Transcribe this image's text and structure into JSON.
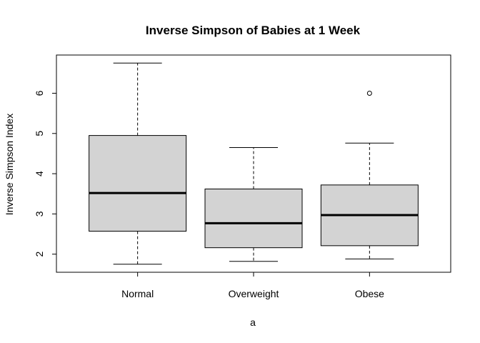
{
  "chart_data": {
    "type": "box",
    "title": "Inverse Simpson of Babies at 1 Week",
    "xlabel": "a",
    "ylabel": "Inverse Simpson Index",
    "categories": [
      "Normal",
      "Overweight",
      "Obese"
    ],
    "boxes": [
      {
        "category": "Normal",
        "whisker_low": 1.75,
        "q1": 2.57,
        "median": 3.52,
        "q3": 4.95,
        "whisker_high": 6.75,
        "outliers": []
      },
      {
        "category": "Overweight",
        "whisker_low": 1.82,
        "q1": 2.16,
        "median": 2.77,
        "q3": 3.62,
        "whisker_high": 4.65,
        "outliers": []
      },
      {
        "category": "Obese",
        "whisker_low": 1.88,
        "q1": 2.21,
        "median": 2.97,
        "q3": 3.72,
        "whisker_high": 4.76,
        "outliers": [
          6.0
        ]
      }
    ],
    "yticks": [
      2,
      3,
      4,
      5,
      6
    ],
    "ytick_labels": [
      "2",
      "3",
      "4",
      "5",
      "6"
    ],
    "ylim": [
      1.55,
      6.95
    ],
    "grid": false,
    "box_fill": "#d3d3d3",
    "line_color": "#000000"
  }
}
